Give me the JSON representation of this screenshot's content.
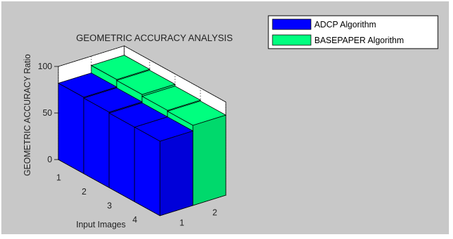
{
  "chart_data": {
    "type": "bar",
    "subtype": "3d-grouped",
    "title": "GEOMETRIC ACCURACY ANALYSIS",
    "xlabel": "Input Images",
    "ylabel": "GEOMETRIC ACCURACY Ratio",
    "categories": [
      "1",
      "2",
      "3",
      "4"
    ],
    "series_ticks": [
      "1",
      "2"
    ],
    "series": [
      {
        "name": "ADCP Algorithm",
        "color": "#0000ff",
        "values": [
          82,
          81,
          80,
          80
        ]
      },
      {
        "name": "BASEPAPER Algorithm",
        "color": "#00ff7f",
        "values": [
          90,
          89,
          87,
          86
        ]
      }
    ],
    "zticks": [
      "0",
      "50",
      "100"
    ],
    "zlim": [
      0,
      100
    ],
    "legend_position": "top-right",
    "grid": true
  }
}
